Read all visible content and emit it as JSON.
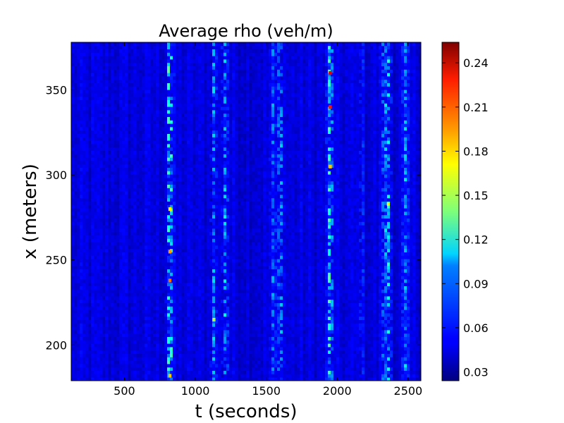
{
  "chart_data": {
    "type": "heatmap",
    "title": "Average rho (veh/m)",
    "xlabel": "t (seconds)",
    "ylabel": "x (meters)",
    "xlim": [
      125,
      2590
    ],
    "ylim": [
      179,
      378
    ],
    "x_ticks": [
      500,
      1000,
      1500,
      2000,
      2500
    ],
    "y_ticks": [
      200,
      250,
      300,
      350
    ],
    "colorbar": {
      "colormap": "jet",
      "range": [
        0.024,
        0.254
      ],
      "ticks": [
        "0.03",
        "0.06",
        "0.09",
        "0.12",
        "0.15",
        "0.18",
        "0.21",
        "0.24"
      ]
    },
    "background_density": 0.045,
    "high_density_bands": [
      {
        "t": 820,
        "peak": 0.16
      },
      {
        "t": 1130,
        "peak": 0.1
      },
      {
        "t": 1210,
        "peak": 0.11
      },
      {
        "t": 1550,
        "peak": 0.09
      },
      {
        "t": 1600,
        "peak": 0.11
      },
      {
        "t": 1950,
        "peak": 0.14
      },
      {
        "t": 2170,
        "peak": 0.07
      },
      {
        "t": 2330,
        "peak": 0.1
      },
      {
        "t": 2360,
        "peak": 0.12
      },
      {
        "t": 2480,
        "peak": 0.1
      }
    ],
    "hot_spots": [
      {
        "t": 1950,
        "x": 360,
        "value": 0.23
      },
      {
        "t": 1950,
        "x": 340,
        "value": 0.22
      },
      {
        "t": 820,
        "x": 238,
        "value": 0.2
      },
      {
        "t": 820,
        "x": 255,
        "value": 0.19
      },
      {
        "t": 1950,
        "x": 305,
        "value": 0.18
      },
      {
        "t": 820,
        "x": 182,
        "value": 0.18
      },
      {
        "t": 820,
        "x": 280,
        "value": 0.17
      },
      {
        "t": 2360,
        "x": 283,
        "value": 0.16
      },
      {
        "t": 1130,
        "x": 215,
        "value": 0.15
      }
    ]
  }
}
